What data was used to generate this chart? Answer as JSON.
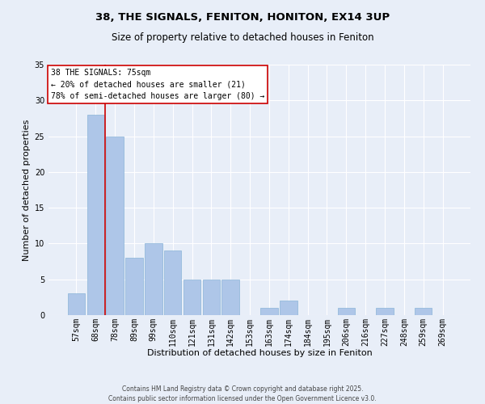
{
  "title_line1": "38, THE SIGNALS, FENITON, HONITON, EX14 3UP",
  "title_line2": "Size of property relative to detached houses in Feniton",
  "xlabel": "Distribution of detached houses by size in Feniton",
  "ylabel": "Number of detached properties",
  "footer_line1": "Contains HM Land Registry data © Crown copyright and database right 2025.",
  "footer_line2": "Contains public sector information licensed under the Open Government Licence v3.0.",
  "categories": [
    "57sqm",
    "68sqm",
    "78sqm",
    "89sqm",
    "99sqm",
    "110sqm",
    "121sqm",
    "131sqm",
    "142sqm",
    "153sqm",
    "163sqm",
    "174sqm",
    "184sqm",
    "195sqm",
    "206sqm",
    "216sqm",
    "227sqm",
    "248sqm",
    "259sqm",
    "269sqm"
  ],
  "values": [
    3,
    28,
    25,
    8,
    10,
    9,
    5,
    5,
    5,
    0,
    1,
    2,
    0,
    0,
    1,
    0,
    1,
    0,
    1,
    0
  ],
  "bar_color": "#aec6e8",
  "bar_edge_color": "#8ab4d8",
  "red_line_x": 1.5,
  "annotation_text": "38 THE SIGNALS: 75sqm\n← 20% of detached houses are smaller (21)\n78% of semi-detached houses are larger (80) →",
  "annotation_box_color": "#ffffff",
  "annotation_edge_color": "#cc0000",
  "ylim": [
    0,
    35
  ],
  "yticks": [
    0,
    5,
    10,
    15,
    20,
    25,
    30,
    35
  ],
  "bg_color": "#e8eef8",
  "grid_color": "#ffffff",
  "title_fontsize": 9.5,
  "subtitle_fontsize": 8.5,
  "axis_label_fontsize": 8,
  "tick_fontsize": 7,
  "annotation_fontsize": 7,
  "footer_fontsize": 5.5
}
